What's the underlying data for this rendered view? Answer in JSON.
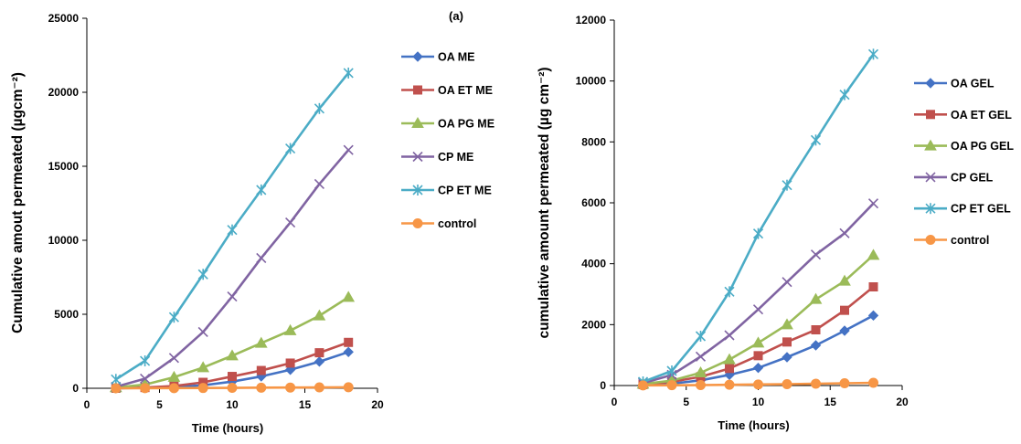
{
  "chart_data": [
    {
      "type": "line",
      "panel_label": "(a)",
      "xlabel": "Time (hours)",
      "ylabel": "Cumulative amout permeated (µgcm⁻²)",
      "xlim": [
        0,
        20
      ],
      "ylim": [
        0,
        25000
      ],
      "xticks": [
        0,
        5,
        10,
        15,
        20
      ],
      "yticks": [
        0,
        5000,
        10000,
        15000,
        20000,
        25000
      ],
      "grid": false,
      "legend_position": "right",
      "x": [
        2,
        4,
        6,
        8,
        10,
        12,
        14,
        16,
        18
      ],
      "series": [
        {
          "name": "OA ME",
          "color": "#4472c4",
          "marker": "diamond",
          "values": [
            0,
            30,
            90,
            200,
            450,
            800,
            1250,
            1800,
            2450
          ]
        },
        {
          "name": "OA ET ME",
          "color": "#c0504d",
          "marker": "square",
          "values": [
            0,
            50,
            150,
            400,
            800,
            1200,
            1700,
            2400,
            3100
          ]
        },
        {
          "name": "OA PG ME",
          "color": "#9bbb59",
          "marker": "triangle",
          "values": [
            50,
            250,
            750,
            1400,
            2200,
            3050,
            3900,
            4900,
            6150
          ]
        },
        {
          "name": "CP ME",
          "color": "#8064a2",
          "marker": "x",
          "values": [
            100,
            650,
            2050,
            3800,
            6200,
            8800,
            11200,
            13800,
            16100
          ]
        },
        {
          "name": "CP ET ME",
          "color": "#4bacc6",
          "marker": "star",
          "values": [
            600,
            1850,
            4800,
            7700,
            10700,
            13400,
            16200,
            18900,
            21300
          ]
        },
        {
          "name": "control",
          "color": "#f79646",
          "marker": "circle",
          "values": [
            0,
            5,
            10,
            20,
            30,
            40,
            50,
            60,
            70
          ]
        }
      ]
    },
    {
      "type": "line",
      "xlabel": "Time (hours)",
      "ylabel": "cumulative amount permeated (µg cm⁻²)",
      "xlim": [
        0,
        20
      ],
      "ylim": [
        0,
        12000
      ],
      "xticks": [
        0,
        5,
        10,
        15,
        20
      ],
      "yticks": [
        0,
        2000,
        4000,
        6000,
        8000,
        10000,
        12000
      ],
      "grid": false,
      "legend_position": "right",
      "x": [
        2,
        4,
        6,
        8,
        10,
        12,
        14,
        16,
        18
      ],
      "series": [
        {
          "name": "OA GEL",
          "color": "#4472c4",
          "marker": "diamond",
          "values": [
            20,
            60,
            170,
            350,
            580,
            930,
            1320,
            1800,
            2300
          ]
        },
        {
          "name": "OA ET GEL",
          "color": "#c0504d",
          "marker": "square",
          "values": [
            30,
            120,
            290,
            560,
            980,
            1430,
            1830,
            2470,
            3240
          ]
        },
        {
          "name": "OA PG GEL",
          "color": "#9bbb59",
          "marker": "triangle",
          "values": [
            50,
            160,
            420,
            850,
            1400,
            2000,
            2830,
            3430,
            4280
          ]
        },
        {
          "name": "CP GEL",
          "color": "#8064a2",
          "marker": "x",
          "values": [
            80,
            350,
            950,
            1650,
            2500,
            3400,
            4300,
            5000,
            5980
          ]
        },
        {
          "name": "CP ET GEL",
          "color": "#4bacc6",
          "marker": "star",
          "values": [
            120,
            480,
            1620,
            3080,
            4990,
            6580,
            8060,
            9550,
            10880
          ]
        },
        {
          "name": "control",
          "color": "#f79646",
          "marker": "circle",
          "values": [
            5,
            10,
            15,
            25,
            35,
            45,
            60,
            75,
            90
          ]
        }
      ]
    }
  ]
}
